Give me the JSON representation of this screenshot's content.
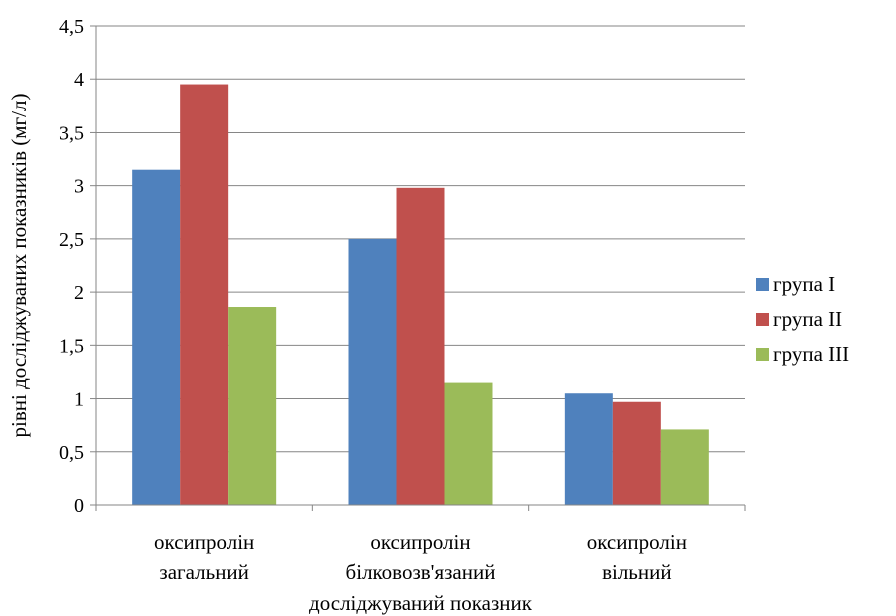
{
  "chart_data": {
    "type": "bar",
    "xlabel": "досліджуваний показник",
    "ylabel": "рівні досліджуваних показників (мг/л)",
    "categories": [
      [
        "оксипролін",
        "загальний"
      ],
      [
        "оксипролін",
        "білковозв'язаний"
      ],
      [
        "оксипролін",
        "вільний"
      ]
    ],
    "series": [
      {
        "name": "група I",
        "color": "#4F81BD",
        "values": [
          3.15,
          2.5,
          1.05
        ]
      },
      {
        "name": "група II",
        "color": "#C0504D",
        "values": [
          3.95,
          2.98,
          0.97
        ]
      },
      {
        "name": "група III",
        "color": "#9BBB59",
        "values": [
          1.86,
          1.15,
          0.71
        ]
      }
    ],
    "ylim": [
      0,
      4.5
    ],
    "yticks": [
      "0",
      "0,5",
      "1",
      "1,5",
      "2",
      "2,5",
      "3",
      "3,5",
      "4",
      "4,5"
    ],
    "grid": true,
    "legend": "right"
  }
}
